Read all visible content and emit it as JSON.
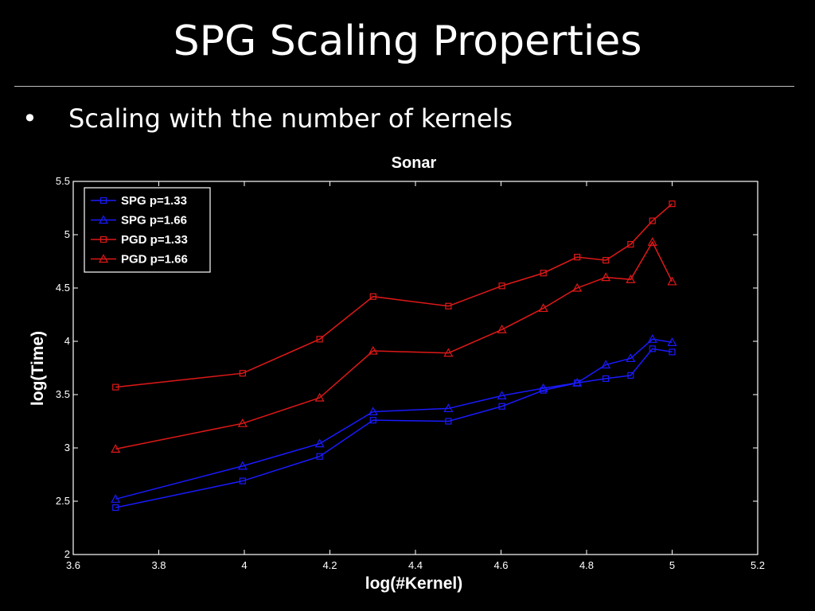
{
  "slide": {
    "title": "SPG Scaling Properties",
    "bullet_symbol": "•",
    "bullet_text": "Scaling with the number of kernels"
  },
  "colors": {
    "background": "#000000",
    "spg": "#1a1aff",
    "pgd": "#e01818",
    "axis": "#ffffff"
  },
  "chart_data": {
    "type": "line",
    "title": "Sonar",
    "xlabel": "log(#Kernel)",
    "ylabel": "log(Time)",
    "xlim": [
      3.6,
      5.2
    ],
    "ylim": [
      2,
      5.5
    ],
    "xticks": [
      3.6,
      3.8,
      4.0,
      4.2,
      4.4,
      4.6,
      4.8,
      5.0,
      5.2
    ],
    "xtick_labels": [
      "3.6",
      "3.8",
      "4",
      "4.2",
      "4.4",
      "4.6",
      "4.8",
      "5",
      "5.2"
    ],
    "yticks": [
      2,
      2.5,
      3,
      3.5,
      4,
      4.5,
      5,
      5.5
    ],
    "ytick_labels": [
      "2",
      "2.5",
      "3",
      "3.5",
      "4",
      "4.5",
      "5",
      "5.5"
    ],
    "legend_position": "top-left",
    "x": [
      3.699,
      3.996,
      4.176,
      4.301,
      4.477,
      4.602,
      4.699,
      4.778,
      4.845,
      4.903,
      4.954,
      5.0
    ],
    "series": [
      {
        "name": "SPG p=1.33",
        "color": "#1a1aff",
        "marker": "square",
        "values": [
          2.44,
          2.69,
          2.92,
          3.26,
          3.25,
          3.39,
          3.54,
          3.61,
          3.65,
          3.68,
          3.93,
          3.9
        ]
      },
      {
        "name": "SPG p=1.66",
        "color": "#1a1aff",
        "marker": "triangle",
        "values": [
          2.52,
          2.83,
          3.04,
          3.34,
          3.37,
          3.49,
          3.56,
          3.61,
          3.78,
          3.84,
          4.02,
          3.99
        ]
      },
      {
        "name": "PGD p=1.33",
        "color": "#e01818",
        "marker": "square",
        "values": [
          3.57,
          3.7,
          4.02,
          4.42,
          4.33,
          4.52,
          4.64,
          4.79,
          4.76,
          4.91,
          5.13,
          5.29
        ]
      },
      {
        "name": "PGD p=1.66",
        "color": "#e01818",
        "marker": "triangle",
        "values": [
          2.99,
          3.23,
          3.47,
          3.91,
          3.89,
          4.11,
          4.31,
          4.5,
          4.6,
          4.58,
          4.93,
          4.56
        ]
      }
    ]
  }
}
